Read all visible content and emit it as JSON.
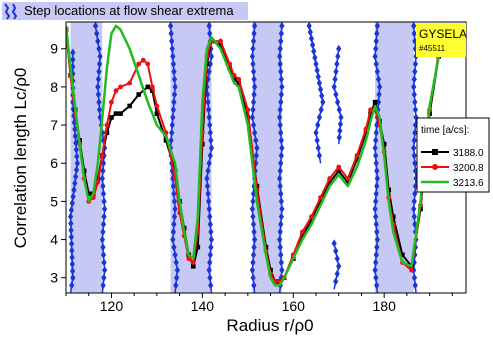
{
  "colors": {
    "band_fill": "#c8c8f4",
    "marker": "#1a36d8",
    "series_black": "#000000",
    "series_red": "#ee1111",
    "series_green": "#22bb22",
    "badge_bg": "#ffff33"
  },
  "chart_data": {
    "type": "line",
    "xlabel": "Radius  r/ρ0",
    "ylabel": "Correlation length  Lc/ρ0",
    "xlim": [
      110,
      198
    ],
    "ylim": [
      2.6,
      9.7
    ],
    "xticks": [
      120,
      140,
      160,
      180
    ],
    "yticks": [
      3,
      4,
      5,
      6,
      7,
      8,
      9
    ],
    "grid": false,
    "top_legend": "Step locations at flow shear extrema",
    "badge": {
      "title": "GYSELA",
      "subtitle": "#45511"
    },
    "legend": {
      "title": "time  [a/cs]:",
      "placement": "right",
      "entries": [
        "3188.0",
        "3200.8",
        "3213.6"
      ]
    },
    "bands": [
      [
        111,
        118
      ],
      [
        133,
        142
      ],
      [
        151,
        157.5
      ],
      [
        178,
        186.5
      ]
    ],
    "marker_lines": [
      {
        "name": "marker-line",
        "points": [
          [
            111.5,
            8.9
          ],
          [
            111.5,
            7.6
          ],
          [
            112.5,
            6.0
          ],
          [
            111,
            4.6
          ],
          [
            111.5,
            3.0
          ],
          [
            111,
            2.6
          ]
        ]
      },
      {
        "name": "marker-line",
        "points": [
          [
            116.5,
            9.6
          ],
          [
            117.5,
            8.8
          ],
          [
            117,
            8.0
          ],
          [
            117.5,
            7.2
          ],
          [
            118.5,
            6.4
          ],
          [
            118,
            5.6
          ],
          [
            118.5,
            4.8
          ],
          [
            118,
            4.0
          ],
          [
            118.5,
            3.2
          ],
          [
            118,
            2.6
          ]
        ]
      },
      {
        "name": "marker-line",
        "points": [
          [
            133,
            9.6
          ],
          [
            133.5,
            8.8
          ],
          [
            134,
            8.0
          ],
          [
            133.5,
            7.2
          ],
          [
            133,
            6.4
          ],
          [
            133.5,
            5.6
          ],
          [
            134,
            4.8
          ],
          [
            133.5,
            4.0
          ],
          [
            134.5,
            3.2
          ],
          [
            134,
            2.6
          ]
        ]
      },
      {
        "name": "marker-line",
        "points": [
          [
            141.5,
            9.6
          ],
          [
            142,
            8.8
          ],
          [
            141,
            8.0
          ],
          [
            141.5,
            7.2
          ],
          [
            142,
            6.4
          ],
          [
            141,
            5.6
          ],
          [
            141.5,
            4.8
          ],
          [
            142,
            4.0
          ],
          [
            141.5,
            3.2
          ],
          [
            142,
            2.6
          ]
        ]
      },
      {
        "name": "marker-line",
        "points": [
          [
            151.5,
            9.6
          ],
          [
            151,
            8.8
          ],
          [
            151.5,
            8.0
          ],
          [
            151,
            7.2
          ],
          [
            152,
            6.4
          ],
          [
            151.5,
            5.6
          ],
          [
            151,
            4.8
          ],
          [
            151.5,
            4.0
          ],
          [
            151,
            3.2
          ],
          [
            151.5,
            2.6
          ]
        ]
      },
      {
        "name": "marker-line",
        "points": [
          [
            157.5,
            9.6
          ],
          [
            157,
            8.8
          ],
          [
            157.5,
            8.0
          ],
          [
            157,
            7.2
          ],
          [
            157.5,
            6.4
          ],
          [
            157,
            5.6
          ],
          [
            157.5,
            4.8
          ],
          [
            157,
            4.0
          ],
          [
            157.5,
            3.2
          ],
          [
            157,
            2.6
          ]
        ]
      },
      {
        "name": "marker-line",
        "points": [
          [
            163.5,
            9.6
          ],
          [
            165,
            8.6
          ],
          [
            166.5,
            7.6
          ],
          [
            165,
            6.8
          ],
          [
            166,
            6.0
          ]
        ]
      },
      {
        "name": "marker-line",
        "points": [
          [
            170,
            9.0
          ],
          [
            169,
            8.0
          ],
          [
            170.5,
            7.2
          ],
          [
            170,
            6.5
          ]
        ]
      },
      {
        "name": "marker-line",
        "points": [
          [
            169,
            3.9
          ],
          [
            170,
            3.3
          ],
          [
            169,
            2.7
          ]
        ]
      },
      {
        "name": "marker-line",
        "points": [
          [
            178.5,
            9.6
          ],
          [
            178,
            8.8
          ],
          [
            179,
            8.0
          ],
          [
            178.5,
            7.2
          ],
          [
            178,
            6.4
          ],
          [
            178.5,
            5.6
          ],
          [
            178,
            4.8
          ],
          [
            178.5,
            4.0
          ],
          [
            178,
            3.2
          ],
          [
            178.5,
            2.6
          ]
        ]
      },
      {
        "name": "marker-line",
        "points": [
          [
            186.5,
            9.6
          ],
          [
            187,
            8.8
          ],
          [
            186.5,
            8.0
          ],
          [
            187,
            7.2
          ],
          [
            186.5,
            6.4
          ],
          [
            187,
            5.6
          ],
          [
            186.5,
            4.8
          ],
          [
            187,
            4.0
          ],
          [
            186.5,
            3.2
          ],
          [
            187,
            2.6
          ]
        ]
      }
    ],
    "series": [
      {
        "name": "3188.0",
        "color": "#000000",
        "marker": "square",
        "x": [
          110,
          111,
          112,
          113,
          114,
          115,
          116,
          117,
          118,
          119,
          120,
          121,
          122,
          124,
          126,
          128,
          129,
          130,
          132,
          134,
          135,
          136,
          137,
          138,
          139,
          140,
          141,
          142,
          144,
          146,
          147,
          148,
          150,
          152,
          154,
          155,
          156,
          157,
          158,
          160,
          162,
          164,
          166,
          168,
          170,
          172,
          174,
          176,
          177,
          178,
          179,
          180,
          181,
          182,
          184,
          186,
          188,
          190,
          192,
          194,
          196
        ],
        "y": [
          9.5,
          8.3,
          7.4,
          6.6,
          5.8,
          5.2,
          5.2,
          5.6,
          6.2,
          6.8,
          7.2,
          7.3,
          7.3,
          7.5,
          7.8,
          8.0,
          7.9,
          7.3,
          6.6,
          5.8,
          5.0,
          4.3,
          3.6,
          3.3,
          3.8,
          6.5,
          8.6,
          9.2,
          9.1,
          8.5,
          8.2,
          8.1,
          7.2,
          5.4,
          3.8,
          3.2,
          2.9,
          2.9,
          3.0,
          3.5,
          4.1,
          4.5,
          5.0,
          5.5,
          5.8,
          5.5,
          6.1,
          6.8,
          7.3,
          7.6,
          7.1,
          6.5,
          5.3,
          4.6,
          3.6,
          3.3,
          4.8,
          7.3,
          8.8,
          9.0,
          9.6
        ]
      },
      {
        "name": "3200.8",
        "color": "#ee1111",
        "marker": "circle",
        "x": [
          110,
          111,
          112,
          113,
          114,
          115,
          116,
          117,
          118,
          119,
          120,
          121,
          122,
          124,
          126,
          127,
          128,
          129,
          130,
          132,
          134,
          135,
          136,
          137,
          138,
          139,
          140,
          141,
          142,
          144,
          146,
          147,
          148,
          150,
          152,
          154,
          155,
          156,
          157,
          158,
          160,
          162,
          164,
          166,
          168,
          170,
          172,
          174,
          176,
          177,
          178,
          179,
          180,
          181,
          182,
          184,
          186,
          188,
          190,
          192,
          194,
          196
        ],
        "y": [
          9.5,
          8.3,
          7.3,
          6.5,
          5.6,
          5.0,
          5.1,
          5.5,
          6.2,
          7.0,
          7.6,
          7.9,
          8.0,
          8.1,
          8.6,
          8.7,
          8.6,
          8.0,
          7.5,
          6.8,
          5.6,
          4.7,
          4.1,
          3.5,
          3.4,
          4.2,
          6.8,
          8.8,
          9.2,
          9.2,
          8.6,
          8.3,
          8.2,
          7.4,
          5.3,
          3.7,
          3.1,
          2.9,
          2.9,
          3.0,
          3.6,
          4.2,
          4.6,
          5.1,
          5.6,
          5.9,
          5.6,
          6.2,
          6.9,
          7.4,
          7.4,
          7.0,
          6.3,
          5.1,
          4.4,
          3.4,
          3.2,
          4.9,
          7.4,
          8.9,
          9.0,
          9.6
        ]
      },
      {
        "name": "3213.6",
        "color": "#22bb22",
        "marker": "none",
        "x": [
          110,
          111,
          112,
          113,
          114,
          115,
          116,
          117,
          118,
          119,
          120,
          121,
          122,
          124,
          126,
          128,
          130,
          132,
          134,
          135,
          136,
          137,
          138,
          139,
          140,
          141,
          142,
          144,
          146,
          147,
          148,
          150,
          152,
          154,
          155,
          156,
          157,
          158,
          160,
          162,
          164,
          166,
          168,
          170,
          172,
          174,
          176,
          177,
          178,
          179,
          180,
          181,
          182,
          184,
          186,
          188,
          190,
          192,
          194,
          196
        ],
        "y": [
          9.6,
          8.5,
          7.5,
          6.5,
          5.6,
          5.0,
          5.2,
          6.0,
          7.2,
          8.5,
          9.4,
          9.6,
          9.5,
          9.0,
          8.3,
          7.6,
          7.0,
          6.7,
          6.0,
          5.0,
          4.2,
          3.6,
          3.5,
          4.6,
          7.6,
          9.0,
          9.3,
          9.0,
          8.4,
          8.1,
          8.0,
          7.0,
          5.0,
          3.6,
          3.0,
          2.8,
          2.8,
          3.0,
          3.5,
          4.0,
          4.4,
          4.9,
          5.4,
          5.7,
          5.4,
          5.9,
          6.6,
          7.1,
          7.5,
          7.2,
          6.2,
          5.0,
          4.2,
          3.4,
          3.3,
          5.0,
          7.5,
          8.8,
          8.9,
          9.6
        ]
      }
    ]
  }
}
